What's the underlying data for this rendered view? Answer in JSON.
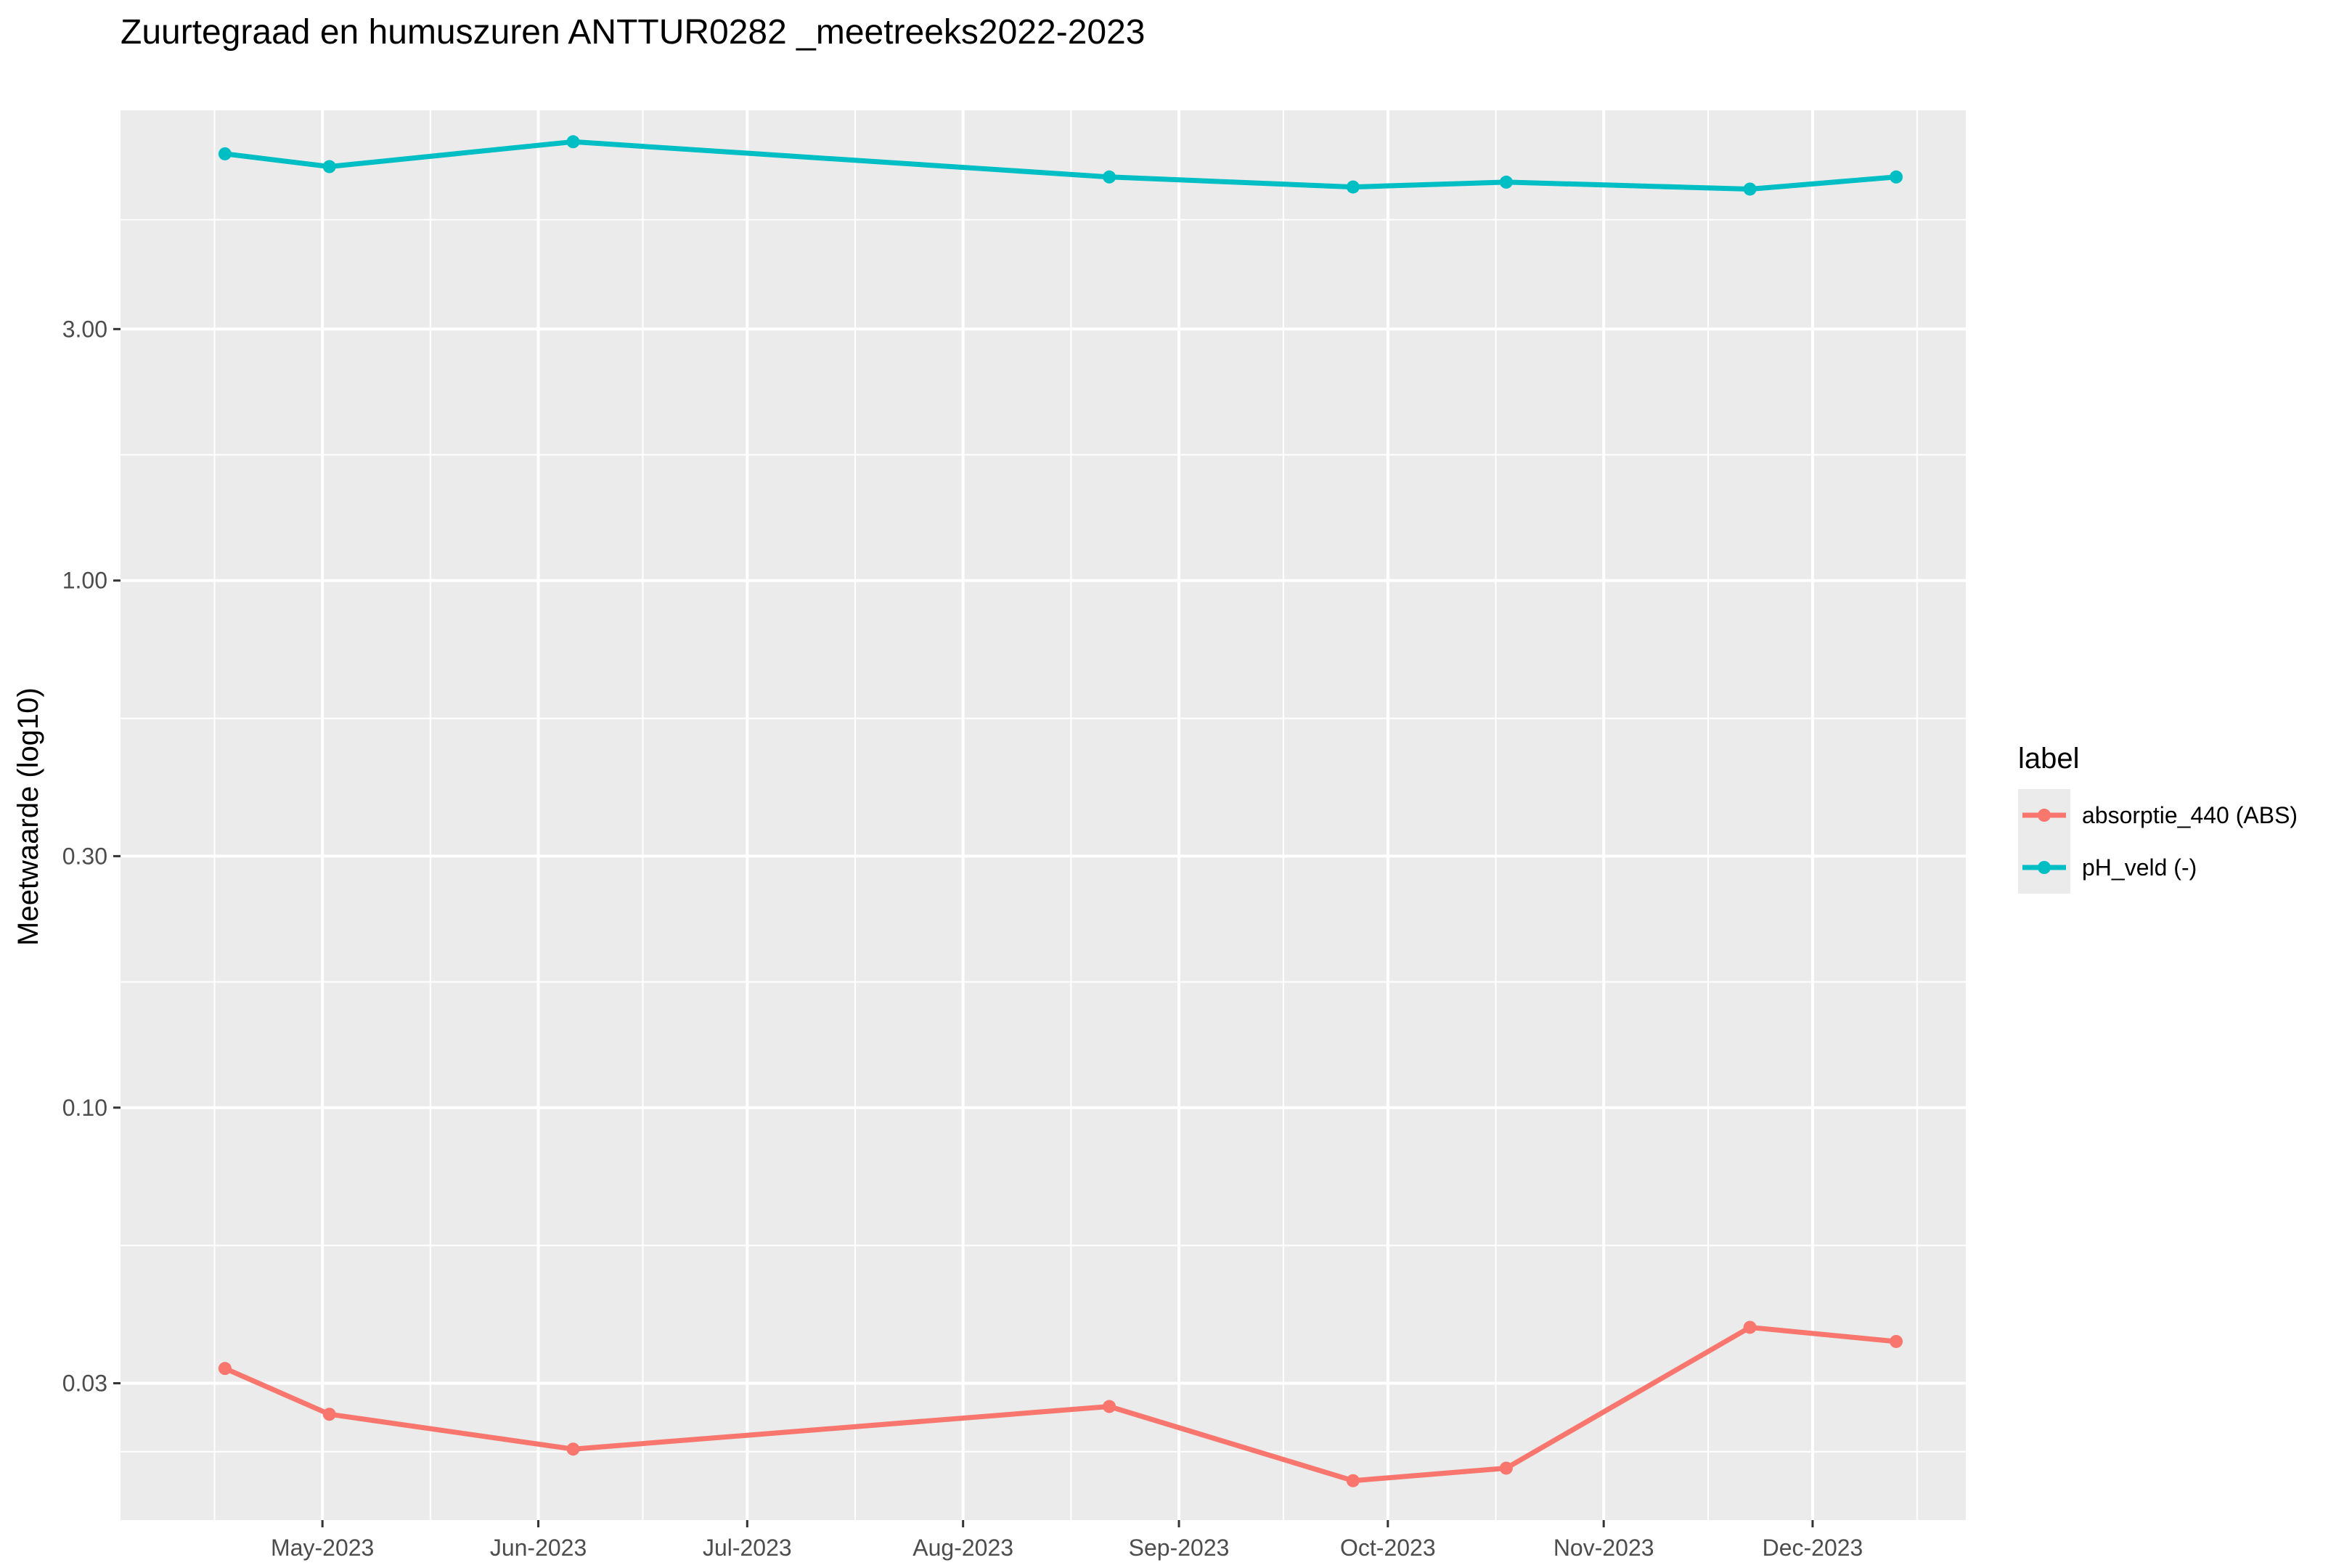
{
  "chart_data": {
    "type": "line",
    "title": "Zuurtegraad en humuszuren ANTTUR0282 _meetreeks2022-2023",
    "xlabel": "",
    "ylabel": "Meetwaarde (log10)",
    "y_scale": "log10",
    "ylim": [
      0.0165,
      7.8
    ],
    "y_ticks": [
      {
        "value": 0.03,
        "label": "0.03"
      },
      {
        "value": 0.1,
        "label": "0.10"
      },
      {
        "value": 0.3,
        "label": "0.30"
      },
      {
        "value": 1.0,
        "label": "1.00"
      },
      {
        "value": 3.0,
        "label": "3.00"
      }
    ],
    "xlim": [
      "2023-04-02",
      "2023-12-23"
    ],
    "x_ticks": [
      {
        "date": "2023-05-01",
        "label": "May-2023"
      },
      {
        "date": "2023-06-01",
        "label": "Jun-2023"
      },
      {
        "date": "2023-07-01",
        "label": "Jul-2023"
      },
      {
        "date": "2023-08-01",
        "label": "Aug-2023"
      },
      {
        "date": "2023-09-01",
        "label": "Sep-2023"
      },
      {
        "date": "2023-10-01",
        "label": "Oct-2023"
      },
      {
        "date": "2023-11-01",
        "label": "Nov-2023"
      },
      {
        "date": "2023-12-01",
        "label": "Dec-2023"
      }
    ],
    "grid": true,
    "legend": {
      "title": "label",
      "position": "right"
    },
    "series": [
      {
        "name": "absorptie_440 (ABS)",
        "color": "#F8766D",
        "points": [
          {
            "x": "2023-04-17",
            "y": 0.032
          },
          {
            "x": "2023-05-02",
            "y": 0.0262
          },
          {
            "x": "2023-06-06",
            "y": 0.0225
          },
          {
            "x": "2023-08-22",
            "y": 0.0271
          },
          {
            "x": "2023-09-26",
            "y": 0.0196
          },
          {
            "x": "2023-10-18",
            "y": 0.0207
          },
          {
            "x": "2023-11-22",
            "y": 0.0383
          },
          {
            "x": "2023-12-13",
            "y": 0.036
          }
        ]
      },
      {
        "name": "pH_veld (-)",
        "color": "#00BFC4",
        "points": [
          {
            "x": "2023-04-17",
            "y": 6.45
          },
          {
            "x": "2023-05-02",
            "y": 6.1
          },
          {
            "x": "2023-06-06",
            "y": 6.8
          },
          {
            "x": "2023-08-22",
            "y": 5.83
          },
          {
            "x": "2023-09-26",
            "y": 5.58
          },
          {
            "x": "2023-10-18",
            "y": 5.7
          },
          {
            "x": "2023-11-22",
            "y": 5.53
          },
          {
            "x": "2023-12-13",
            "y": 5.83
          }
        ]
      }
    ]
  }
}
